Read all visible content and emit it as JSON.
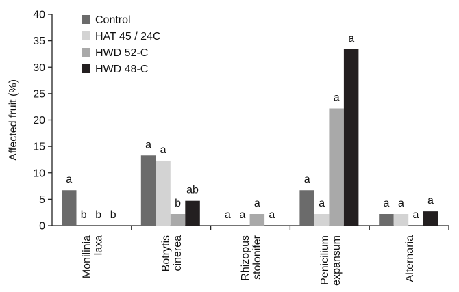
{
  "chart_data": {
    "type": "bar",
    "ylabel": "Affected fruit (%)",
    "xlabel": "",
    "ylim": [
      0,
      40
    ],
    "yticks": [
      0,
      5,
      10,
      15,
      20,
      25,
      30,
      35,
      40
    ],
    "grid": false,
    "legend_position": "top-left",
    "categories": [
      [
        "Monilinia",
        "laxa"
      ],
      [
        "Botrytis",
        "cinerea"
      ],
      [
        "Rhizopus",
        "stolonifer"
      ],
      [
        "Penicilium",
        "expansum"
      ],
      [
        "Alternaria"
      ]
    ],
    "series": [
      {
        "name": "Control",
        "color": "#6b6b6b",
        "values": [
          6.7,
          13.3,
          0,
          6.7,
          2.2
        ],
        "labels": [
          "a",
          "a",
          "a",
          "a",
          "a"
        ]
      },
      {
        "name": "HAT 45 / 24C",
        "color": "#d3d3d3",
        "values": [
          0,
          12.3,
          0,
          2.2,
          2.2
        ],
        "labels": [
          "b",
          "a",
          "a",
          "a",
          "a"
        ]
      },
      {
        "name": "HWD 52-C",
        "color": "#a9a9a9",
        "values": [
          0,
          2.2,
          2.2,
          22.2,
          0
        ],
        "labels": [
          "b",
          "b",
          "a",
          "a",
          "a"
        ]
      },
      {
        "name": "HWD 48-C",
        "color": "#231f20",
        "values": [
          0,
          4.7,
          0,
          33.4,
          2.7
        ],
        "labels": [
          "b",
          "ab",
          "a",
          "a",
          "a"
        ]
      }
    ]
  }
}
